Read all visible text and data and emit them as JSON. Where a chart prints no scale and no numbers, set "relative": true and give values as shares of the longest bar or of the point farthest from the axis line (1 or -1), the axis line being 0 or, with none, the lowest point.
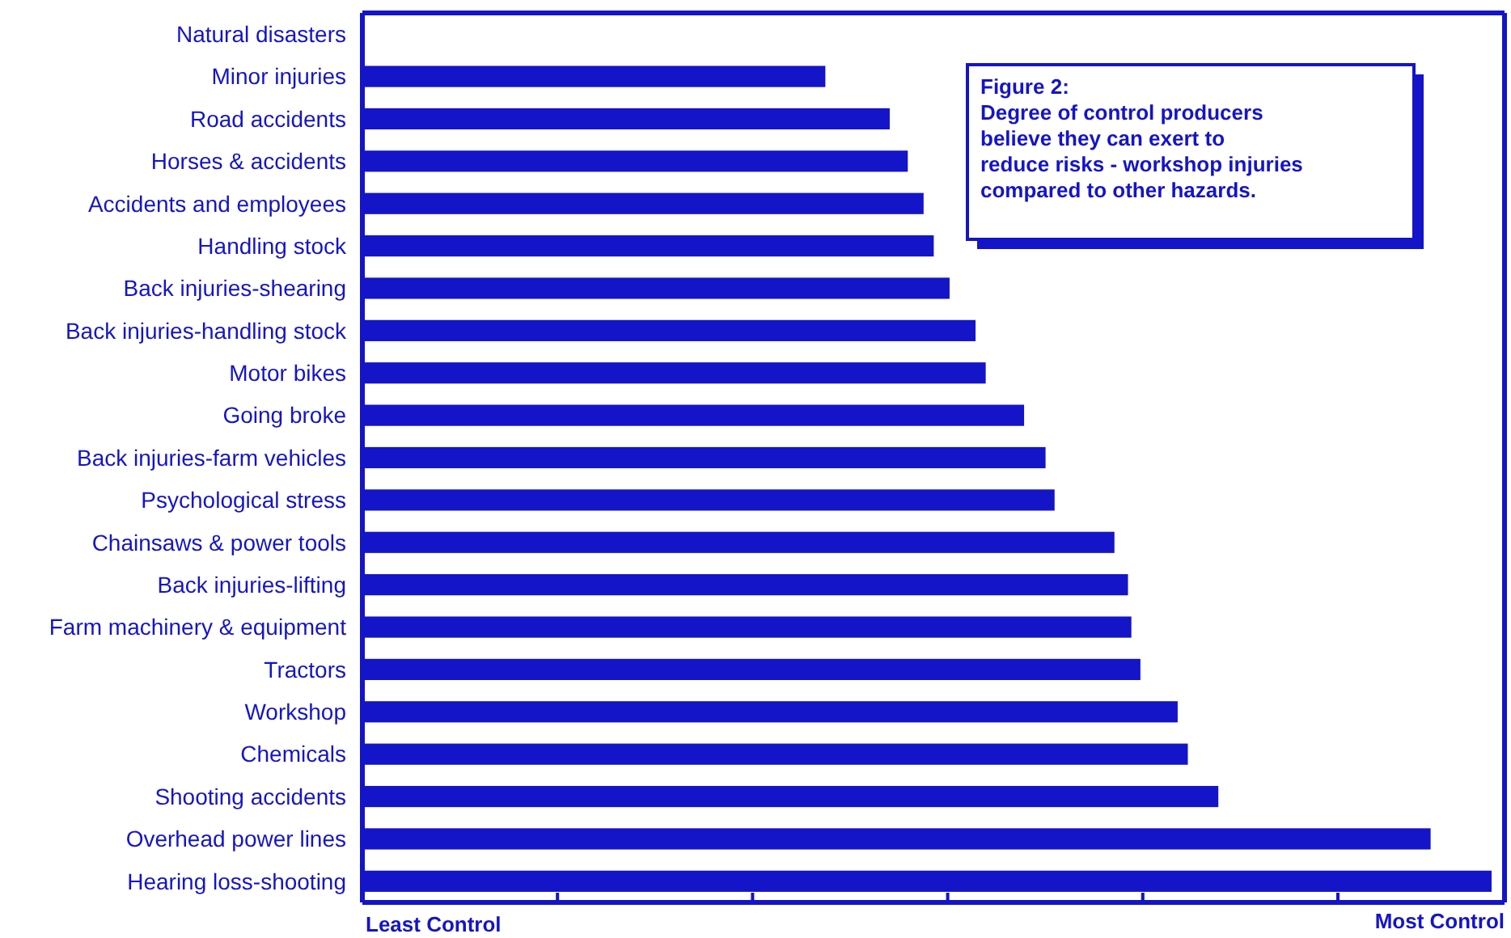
{
  "chart_data": {
    "type": "bar",
    "orientation": "horizontal",
    "relative": true,
    "title": "Figure 2:",
    "subtitle": "Degree of control producers\nbelieve they can exert to\nreduce risks - workshop injuries\ncompared to other hazards.",
    "annotations": [
      "Least Control",
      "Most Control"
    ],
    "color": "#1414c8",
    "categories": [
      "Natural disasters",
      "Minor injuries",
      "Road accidents",
      "Horses & accidents",
      "Accidents and employees",
      "Handling stock",
      "Back injuries-shearing",
      "Back injuries-handling stock",
      "Motor bikes",
      "Going broke",
      "Back injuries-farm vehicles",
      "Psychological stress",
      "Chainsaws & power tools",
      "Back injuries-lifting",
      "Farm machinery & equipment",
      "Tractors",
      "Workshop",
      "Chemicals",
      "Shooting accidents",
      "Overhead power lines",
      "Hearing loss-shooting"
    ],
    "values": [
      0,
      0.41,
      0.467,
      0.483,
      0.497,
      0.506,
      0.52,
      0.543,
      0.552,
      0.586,
      0.605,
      0.613,
      0.666,
      0.678,
      0.681,
      0.689,
      0.722,
      0.731,
      0.758,
      0.946,
      1
    ]
  }
}
